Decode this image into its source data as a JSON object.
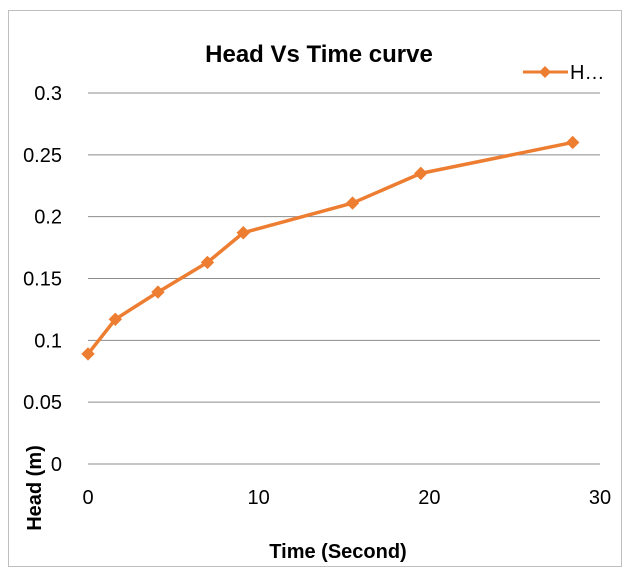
{
  "chart_data": {
    "type": "line",
    "title": "Head Vs Time curve",
    "xlabel": "Time (Second)",
    "ylabel": "Head (m)",
    "xlim": [
      0,
      30
    ],
    "ylim": [
      0,
      0.3
    ],
    "x_ticks": [
      "0",
      "10",
      "20",
      "30"
    ],
    "y_ticks": [
      "0",
      "0.05",
      "0.1",
      "0.15",
      "0.2",
      "0.25",
      "0.3"
    ],
    "x_tick_values": [
      0,
      10,
      20,
      30
    ],
    "y_tick_values": [
      0,
      0.05,
      0.1,
      0.15,
      0.2,
      0.25,
      0.3
    ],
    "grid": true,
    "legend_position": "top-right",
    "series": [
      {
        "name": "H…",
        "color": "#ED7D31",
        "marker": "diamond",
        "x": [
          0,
          1.6,
          4.1,
          7.0,
          9.1,
          15.5,
          19.5,
          28.4
        ],
        "y": [
          0.089,
          0.117,
          0.139,
          0.163,
          0.187,
          0.211,
          0.235,
          0.26
        ]
      }
    ]
  }
}
